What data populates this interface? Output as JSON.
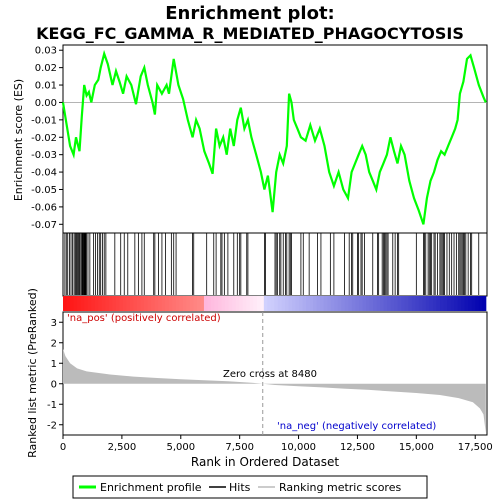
{
  "title": "Enrichment plot:",
  "subtitle": "KEGG_FC_GAMMA_R_MEDIATED_PHAGOCYTOSIS",
  "chart_data": {
    "type": "line",
    "es_panel": {
      "ylabel": "Enrichment score (ES)",
      "ylim": [
        -0.075,
        0.033
      ],
      "yticks": [
        "0.03",
        "0.02",
        "0.01",
        "0.00",
        "-0.01",
        "-0.02",
        "-0.03",
        "-0.04",
        "-0.05",
        "-0.06",
        "-0.07"
      ],
      "ytick_values": [
        0.03,
        0.02,
        0.01,
        0.0,
        -0.01,
        -0.02,
        -0.03,
        -0.04,
        -0.05,
        -0.06,
        -0.07
      ],
      "line_color": "#00ff00",
      "profile": [
        [
          0,
          0.0
        ],
        [
          300,
          -0.025
        ],
        [
          450,
          -0.03
        ],
        [
          550,
          -0.02
        ],
        [
          700,
          -0.028
        ],
        [
          800,
          -0.008
        ],
        [
          900,
          0.01
        ],
        [
          1000,
          0.004
        ],
        [
          1100,
          0.006
        ],
        [
          1200,
          0.0
        ],
        [
          1350,
          0.01
        ],
        [
          1500,
          0.013
        ],
        [
          1600,
          0.02
        ],
        [
          1750,
          0.028
        ],
        [
          1900,
          0.022
        ],
        [
          2100,
          0.01
        ],
        [
          2250,
          0.018
        ],
        [
          2400,
          0.012
        ],
        [
          2550,
          0.005
        ],
        [
          2700,
          0.015
        ],
        [
          2900,
          0.01
        ],
        [
          3100,
          -0.001
        ],
        [
          3300,
          0.015
        ],
        [
          3450,
          0.02
        ],
        [
          3600,
          0.01
        ],
        [
          3800,
          0.0
        ],
        [
          3900,
          -0.007
        ],
        [
          4000,
          0.01
        ],
        [
          4200,
          0.005
        ],
        [
          4400,
          0.01
        ],
        [
          4500,
          0.005
        ],
        [
          4700,
          0.025
        ],
        [
          4900,
          0.01
        ],
        [
          5100,
          0.002
        ],
        [
          5300,
          -0.01
        ],
        [
          5500,
          -0.02
        ],
        [
          5650,
          -0.01
        ],
        [
          5800,
          -0.015
        ],
        [
          6000,
          -0.028
        ],
        [
          6200,
          -0.035
        ],
        [
          6350,
          -0.041
        ],
        [
          6500,
          -0.015
        ],
        [
          6650,
          -0.025
        ],
        [
          6800,
          -0.02
        ],
        [
          6950,
          -0.03
        ],
        [
          7100,
          -0.015
        ],
        [
          7250,
          -0.025
        ],
        [
          7400,
          -0.01
        ],
        [
          7550,
          -0.003
        ],
        [
          7700,
          -0.015
        ],
        [
          7850,
          -0.01
        ],
        [
          8000,
          -0.02
        ],
        [
          8200,
          -0.03
        ],
        [
          8400,
          -0.04
        ],
        [
          8550,
          -0.05
        ],
        [
          8700,
          -0.042
        ],
        [
          8900,
          -0.063
        ],
        [
          9050,
          -0.04
        ],
        [
          9200,
          -0.03
        ],
        [
          9350,
          -0.035
        ],
        [
          9500,
          -0.025
        ],
        [
          9600,
          0.005
        ],
        [
          9700,
          0.0
        ],
        [
          9800,
          -0.01
        ],
        [
          9950,
          -0.015
        ],
        [
          10100,
          -0.02
        ],
        [
          10300,
          -0.022
        ],
        [
          10500,
          -0.013
        ],
        [
          10700,
          -0.022
        ],
        [
          10900,
          -0.015
        ],
        [
          11100,
          -0.025
        ],
        [
          11300,
          -0.04
        ],
        [
          11500,
          -0.048
        ],
        [
          11700,
          -0.04
        ],
        [
          11900,
          -0.05
        ],
        [
          12100,
          -0.055
        ],
        [
          12250,
          -0.04
        ],
        [
          12400,
          -0.035
        ],
        [
          12550,
          -0.03
        ],
        [
          12700,
          -0.025
        ],
        [
          12850,
          -0.03
        ],
        [
          13000,
          -0.04
        ],
        [
          13150,
          -0.045
        ],
        [
          13300,
          -0.05
        ],
        [
          13450,
          -0.04
        ],
        [
          13600,
          -0.035
        ],
        [
          13750,
          -0.03
        ],
        [
          13900,
          -0.02
        ],
        [
          14050,
          -0.028
        ],
        [
          14200,
          -0.035
        ],
        [
          14350,
          -0.025
        ],
        [
          14500,
          -0.03
        ],
        [
          14700,
          -0.045
        ],
        [
          14900,
          -0.055
        ],
        [
          15100,
          -0.062
        ],
        [
          15300,
          -0.07
        ],
        [
          15450,
          -0.055
        ],
        [
          15600,
          -0.045
        ],
        [
          15750,
          -0.04
        ],
        [
          15900,
          -0.033
        ],
        [
          16050,
          -0.028
        ],
        [
          16200,
          -0.03
        ],
        [
          16350,
          -0.025
        ],
        [
          16500,
          -0.02
        ],
        [
          16650,
          -0.015
        ],
        [
          16750,
          -0.01
        ],
        [
          16850,
          0.005
        ],
        [
          17000,
          0.012
        ],
        [
          17150,
          0.025
        ],
        [
          17300,
          0.027
        ],
        [
          17450,
          0.02
        ],
        [
          17650,
          0.01
        ],
        [
          17850,
          0.003
        ],
        [
          17950,
          0.0
        ]
      ]
    },
    "hits": [
      80,
      140,
      200,
      280,
      340,
      400,
      470,
      520,
      560,
      600,
      610,
      660,
      700,
      730,
      790,
      810,
      830,
      850,
      880,
      900,
      920,
      940,
      960,
      1000,
      1060,
      1140,
      1300,
      1380,
      1460,
      1540,
      1600,
      1680,
      1750,
      1820,
      2200,
      2450,
      2600,
      2750,
      3050,
      3200,
      3350,
      3450,
      3850,
      3900,
      4050,
      4200,
      4350,
      4600,
      4700,
      4800,
      5500,
      5550,
      6100,
      6400,
      6500,
      6700,
      6750,
      6850,
      7000,
      7250,
      7400,
      7500,
      7550,
      7800,
      7850,
      8550,
      8600,
      9000,
      9050,
      9100,
      9200,
      9250,
      9350,
      9450,
      9500,
      9600,
      9650,
      9700,
      10100,
      10200,
      10450,
      10800,
      10950,
      11350,
      11500,
      11950,
      12150,
      12250,
      12300,
      12500,
      12550,
      12650,
      12700,
      12800,
      13150,
      13350,
      13400,
      13550,
      13600,
      13650,
      13700,
      13750,
      13800,
      14000,
      14100,
      14200,
      14250,
      15000,
      15300,
      15350,
      15400,
      15500,
      15550,
      15600,
      15650,
      15750,
      15800,
      15900,
      16000,
      16050,
      16100,
      16150,
      16200,
      16300,
      16400,
      16500,
      16600,
      16700,
      16800,
      16850,
      16900,
      16950,
      17000,
      17050,
      17100,
      17200,
      17300,
      17350,
      17650
    ],
    "metric_panel": {
      "ylabel": "Ranked list metric (PreRanked)",
      "ylim": [
        -2.5,
        3.5
      ],
      "yticks": [
        "3",
        "2",
        "1",
        "0",
        "-1",
        "-2"
      ],
      "ytick_values": [
        3,
        2,
        1,
        0,
        -1,
        -2
      ],
      "zero_cross_label": "Zero cross at 8480",
      "zero_cross": 8480,
      "pos_label": "'na_pos' (positively correlated)",
      "neg_label": "'na_neg' (negatively correlated)",
      "metric_curve": [
        [
          0,
          1.7
        ],
        [
          100,
          1.35
        ],
        [
          300,
          1.0
        ],
        [
          600,
          0.75
        ],
        [
          1000,
          0.6
        ],
        [
          2000,
          0.45
        ],
        [
          3000,
          0.35
        ],
        [
          4000,
          0.28
        ],
        [
          5000,
          0.22
        ],
        [
          6000,
          0.17
        ],
        [
          7000,
          0.12
        ],
        [
          8000,
          0.05
        ],
        [
          8480,
          0.0
        ],
        [
          9000,
          -0.06
        ],
        [
          10000,
          -0.12
        ],
        [
          11000,
          -0.18
        ],
        [
          12000,
          -0.24
        ],
        [
          13000,
          -0.3
        ],
        [
          14000,
          -0.38
        ],
        [
          15000,
          -0.45
        ],
        [
          16000,
          -0.55
        ],
        [
          16800,
          -0.7
        ],
        [
          17400,
          -0.9
        ],
        [
          17700,
          -1.2
        ],
        [
          17850,
          -1.5
        ],
        [
          17950,
          -2.4
        ]
      ]
    },
    "xaxis": {
      "xlabel": "Rank in Ordered Dataset",
      "xlim": [
        0,
        18000
      ],
      "xticks": [
        "0",
        "2,500",
        "5,000",
        "7,500",
        "10,000",
        "12,500",
        "15,000",
        "17,500"
      ],
      "xtick_values": [
        0,
        2500,
        5000,
        7500,
        10000,
        12500,
        15000,
        17500
      ]
    },
    "colorbar_max": 17950,
    "legend": {
      "placement": "bottom",
      "items": [
        "Enrichment profile",
        "Hits",
        "Ranking metric scores"
      ]
    }
  }
}
